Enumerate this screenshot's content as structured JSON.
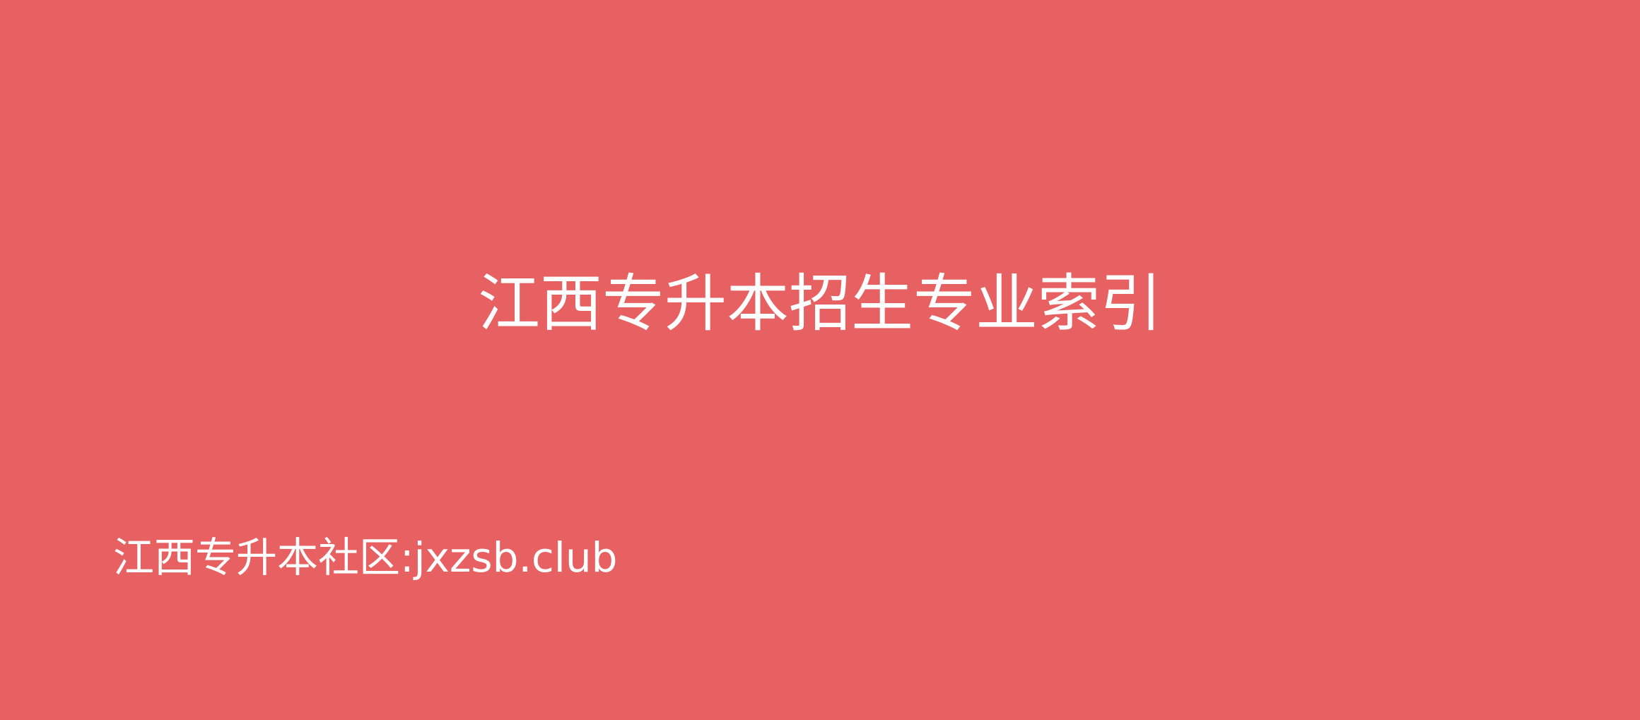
{
  "slide": {
    "title": "江西专升本招生专业索引",
    "footer": "江西专升本社区:jxzsb.club",
    "background_color": "#e86162",
    "text_color": "#ffffff"
  }
}
